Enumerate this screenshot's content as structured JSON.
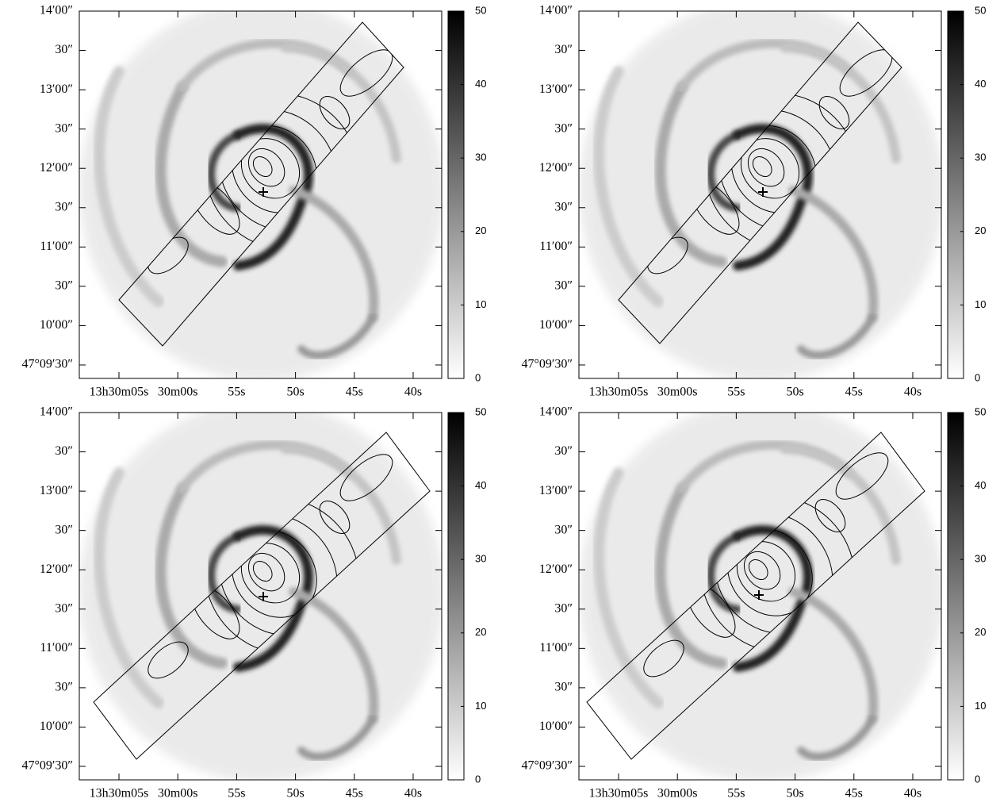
{
  "panels": [
    {
      "y_tick_labels": [
        "14′00″",
        "30″",
        "13′00″",
        "30″",
        "12′00″",
        "30″",
        "11′00″",
        "30″",
        "10′00″",
        "47°09′30″"
      ],
      "x_tick_labels": [
        "13h30m05s",
        "30m00s",
        "55s",
        "50s",
        "45s",
        "40s"
      ],
      "colorbar": {
        "lim": [
          0,
          50
        ],
        "ticks": [
          0,
          10,
          20,
          30,
          40,
          50
        ]
      }
    },
    {
      "y_tick_labels": [
        "14′00″",
        "30″",
        "13′00″",
        "30″",
        "12′00″",
        "30″",
        "11′00″",
        "30″",
        "10′00″",
        "47°09′30″"
      ],
      "x_tick_labels": [
        "13h30m05s",
        "30m00s",
        "55s",
        "50s",
        "45s",
        "40s"
      ],
      "colorbar": {
        "lim": [
          0,
          50
        ],
        "ticks": [
          0,
          10,
          20,
          30,
          40,
          50
        ]
      }
    },
    {
      "y_tick_labels": [
        "14′00″",
        "30″",
        "13′00″",
        "30″",
        "12′00″",
        "30″",
        "11′00″",
        "30″",
        "10′00″",
        "47°09′30″"
      ],
      "x_tick_labels": [
        "13h30m05s",
        "30m00s",
        "55s",
        "50s",
        "45s",
        "40s"
      ],
      "colorbar": {
        "lim": [
          0,
          50
        ],
        "ticks": [
          0,
          10,
          20,
          30,
          40,
          50
        ]
      }
    },
    {
      "y_tick_labels": [
        "14′00″",
        "30″",
        "13′00″",
        "30″",
        "12′00″",
        "30″",
        "11′00″",
        "30″",
        "10′00″",
        "47°09′30″"
      ],
      "x_tick_labels": [
        "13h30m05s",
        "30m00s",
        "55s",
        "50s",
        "45s",
        "40s"
      ],
      "colorbar": {
        "lim": [
          0,
          50
        ],
        "ticks": [
          0,
          10,
          20,
          30,
          40,
          50
        ]
      }
    }
  ]
}
